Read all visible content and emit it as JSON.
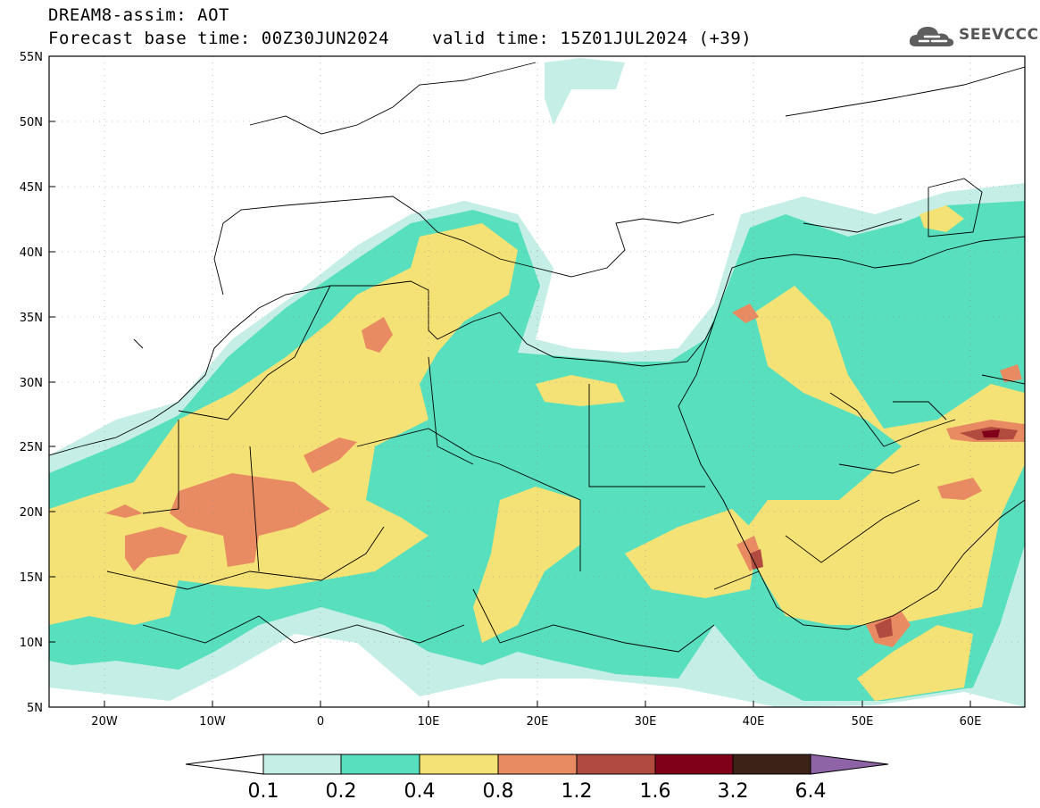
{
  "header": {
    "model_title": "DREAM8-assim: AOT",
    "base_time": "Forecast base time: 00Z30JUN2024",
    "valid_time": "valid time: 15Z01JUL2024 (+39)"
  },
  "logo": {
    "text": "SEEVCCC",
    "icon": "cloud-icon"
  },
  "map": {
    "lon_ticks": [
      "20W",
      "10W",
      "0",
      "10E",
      "20E",
      "30E",
      "40E",
      "50E",
      "60E"
    ],
    "lat_ticks": [
      "55N",
      "50N",
      "45N",
      "40N",
      "35N",
      "30N",
      "25N",
      "20N",
      "15N",
      "10N",
      "5N"
    ],
    "lon_range": [
      -25,
      65
    ],
    "lat_range": [
      5,
      55
    ]
  },
  "legend": {
    "thresholds": [
      "0.1",
      "0.2",
      "0.4",
      "0.8",
      "1.2",
      "1.6",
      "3.2",
      "6.4"
    ],
    "colors": [
      "#ffffff",
      "#c4eee6",
      "#58dfbd",
      "#f5e276",
      "#e88b62",
      "#b14a3f",
      "#800019",
      "#3b2318",
      "#8e64a6"
    ]
  }
}
